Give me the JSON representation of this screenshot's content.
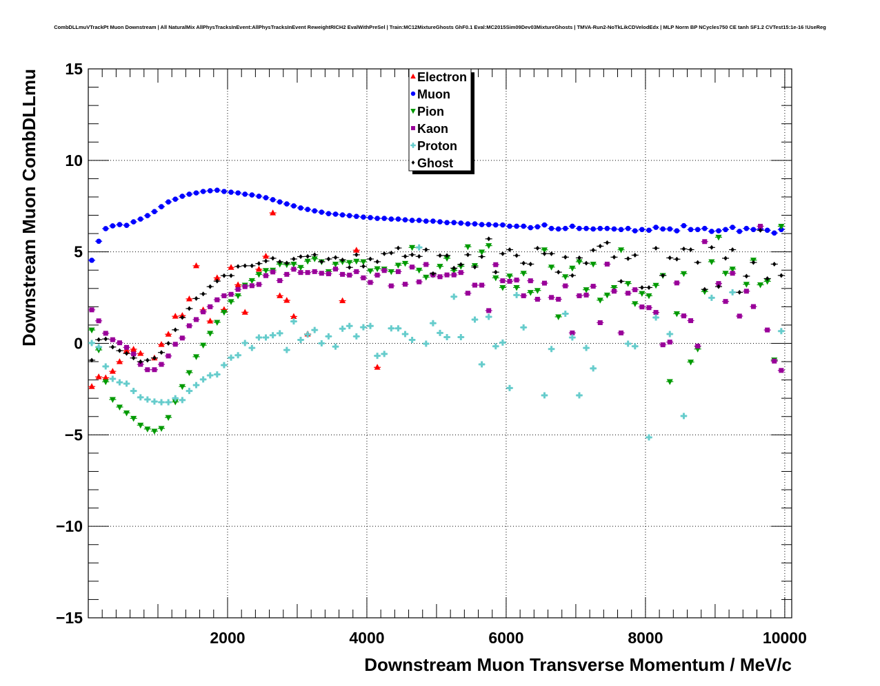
{
  "chart_data": {
    "type": "scatter",
    "title": "CombDLLmuVTrackPt Muon Downstream | All NaturalMix AllPhysTracksInEvent:AllPhysTracksInEvent ReweightRICH2 EvalWithPreSel | Train:MC12MixtureGhosts GhF0.1 Eval:MC2015Sim09Dev03MixtureGhosts | TMVA-Run2-NoTkLikCDVelodEdx | MLP Norm BP NCycles750 CE tanh SF1.2 CVTest15:1e-16 !UseReg",
    "xlabel": "Downstream Muon Transverse Momentum / MeV/c",
    "ylabel": "Downstream Muon CombDLLmu",
    "xlim": [
      0,
      10100
    ],
    "ylim": [
      -15,
      15
    ],
    "xticks": [
      "2000",
      "4000",
      "6000",
      "8000",
      "10000"
    ],
    "yticks": [
      "−15",
      "−10",
      "−5",
      "0",
      "5",
      "10",
      "15"
    ],
    "grid": true,
    "legend_position": "top-center",
    "bin_start": 50,
    "bin_width": 100,
    "series": [
      {
        "name": "Electron",
        "color": "#ff0000",
        "marker": "triangle-up",
        "values": [
          -2.36,
          -1.83,
          -1.88,
          -1.53,
          -1.0,
          -0.4,
          -0.32,
          -0.55,
          null,
          -0.8,
          -0.06,
          0.5,
          1.48,
          1.52,
          2.43,
          4.24,
          1.83,
          1.22,
          3.58,
          1.85,
          4.15,
          3.2,
          1.7,
          null,
          4.05,
          4.76,
          7.13,
          2.6,
          2.35,
          1.47,
          null,
          0.51,
          null,
          null,
          null,
          null,
          2.33,
          null,
          5.09,
          null,
          null,
          -1.31
        ]
      },
      {
        "name": "Muon",
        "color": "#0000ff",
        "marker": "circle",
        "values": [
          4.54,
          5.58,
          6.27,
          6.42,
          6.49,
          6.45,
          6.64,
          6.79,
          6.98,
          7.2,
          7.47,
          7.73,
          7.88,
          8.04,
          8.15,
          8.22,
          8.3,
          8.34,
          8.37,
          8.3,
          8.26,
          8.22,
          8.15,
          8.11,
          8.04,
          7.96,
          7.85,
          7.73,
          7.62,
          7.51,
          7.4,
          7.32,
          7.24,
          7.17,
          7.09,
          7.06,
          7.02,
          6.98,
          6.94,
          6.9,
          6.87,
          6.83,
          6.83,
          6.79,
          6.79,
          6.75,
          6.72,
          6.72,
          6.68,
          6.68,
          6.64,
          6.6,
          6.6,
          6.57,
          6.53,
          6.53,
          6.49,
          6.49,
          6.47,
          6.47,
          6.4,
          6.4,
          6.4,
          6.32,
          6.37,
          6.47,
          6.28,
          6.25,
          6.28,
          6.4,
          6.28,
          6.28,
          6.25,
          6.28,
          6.28,
          6.25,
          6.22,
          6.28,
          6.15,
          6.22,
          6.18,
          6.34,
          6.25,
          6.25,
          6.15,
          6.43,
          6.22,
          6.22,
          6.28,
          6.12,
          6.15,
          6.22,
          6.34,
          6.12,
          6.28,
          6.22,
          6.25,
          6.18,
          6.03,
          6.22
        ]
      },
      {
        "name": "Pion",
        "color": "#009a00",
        "marker": "triangle-down",
        "values": [
          0.73,
          -0.36,
          -2.1,
          -3.07,
          -3.48,
          -3.8,
          -4.1,
          -4.47,
          -4.68,
          -4.8,
          -4.65,
          -4.05,
          -3.2,
          -2.36,
          -1.6,
          -0.73,
          -0.1,
          0.55,
          1.15,
          1.7,
          2.28,
          2.6,
          3.18,
          3.43,
          3.77,
          3.98,
          4.0,
          4.33,
          4.3,
          4.33,
          4.15,
          4.49,
          4.62,
          4.46,
          3.92,
          4.33,
          4.46,
          4.42,
          4.49,
          4.46,
          3.96,
          4.08,
          4.06,
          3.92,
          4.27,
          4.37,
          5.24,
          4.0,
          3.62,
          3.74,
          4.21,
          4.65,
          3.98,
          4.21,
          5.28,
          4.25,
          4.99,
          5.34,
          3.58,
          3.05,
          3.68,
          3.05,
          3.83,
          2.78,
          2.89,
          5.11,
          4.17,
          1.45,
          3.64,
          4.11,
          4.46,
          2.93,
          4.33,
          2.36,
          2.64,
          3.05,
          5.11,
          3.27,
          2.17,
          2.73,
          2.6,
          3.17,
          3.71,
          -2.09,
          1.62,
          3.81,
          -1.02,
          -0.31,
          2.83,
          4.46,
          5.8,
          3.83,
          4.06,
          null,
          3.23,
          4.55,
          3.2,
          3.39,
          -0.91,
          6.4
        ]
      },
      {
        "name": "Kaon",
        "color": "#990099",
        "marker": "square",
        "values": [
          1.83,
          1.23,
          0.55,
          0.2,
          0.03,
          -0.22,
          -0.58,
          -1.15,
          -1.44,
          -1.44,
          -1.15,
          -0.69,
          -0.05,
          0.29,
          0.96,
          1.3,
          1.72,
          2.0,
          2.38,
          2.6,
          2.68,
          2.95,
          3.1,
          3.15,
          3.22,
          3.7,
          3.9,
          3.43,
          3.77,
          4.05,
          3.87,
          3.87,
          3.92,
          3.83,
          3.8,
          4.06,
          3.77,
          3.73,
          3.92,
          3.58,
          3.33,
          3.73,
          3.98,
          3.14,
          3.92,
          3.23,
          4.17,
          3.36,
          4.31,
          3.74,
          3.64,
          3.74,
          3.74,
          3.87,
          2.74,
          3.18,
          3.18,
          1.79,
          4.3,
          3.42,
          3.39,
          3.46,
          2.6,
          3.42,
          2.41,
          3.29,
          2.51,
          2.41,
          3.14,
          0.57,
          2.6,
          2.64,
          3.12,
          1.13,
          4.33,
          2.85,
          0.57,
          2.74,
          2.93,
          1.99,
          1.95,
          1.69,
          -0.08,
          0.07,
          3.3,
          1.5,
          1.24,
          -0.15,
          5.56,
          null,
          3.27,
          2.29,
          3.83,
          1.49,
          2.85,
          2.01,
          6.4,
          0.73,
          -0.97,
          -1.48
        ]
      },
      {
        "name": "Proton",
        "color": "#66cccc",
        "marker": "cross",
        "values": [
          0.02,
          -0.2,
          -1.26,
          -1.94,
          -2.13,
          -2.2,
          -2.6,
          -2.95,
          -3.07,
          -3.18,
          -3.22,
          -3.22,
          -3.0,
          -3.1,
          -2.6,
          -2.28,
          -1.97,
          -1.75,
          -1.7,
          -1.19,
          -0.78,
          -0.65,
          0.02,
          -0.25,
          0.32,
          0.32,
          0.44,
          0.55,
          -0.36,
          1.2,
          0.19,
          0.48,
          0.73,
          0.0,
          0.38,
          -0.18,
          0.8,
          0.95,
          0.38,
          0.88,
          0.95,
          -0.68,
          -0.58,
          0.82,
          0.82,
          0.51,
          0.19,
          5.24,
          -0.02,
          1.1,
          0.57,
          0.34,
          2.55,
          0.34,
          null,
          1.3,
          -1.15,
          1.45,
          -0.16,
          0.04,
          -2.44,
          2.64,
          0.87,
          null,
          null,
          -2.84,
          -0.31,
          null,
          1.62,
          0.32,
          -2.84,
          -0.25,
          -1.37,
          null,
          null,
          null,
          null,
          -0.02,
          -0.16,
          null,
          -5.14,
          1.41,
          null,
          0.51,
          null,
          -3.97,
          null,
          null,
          null,
          2.49,
          null,
          null,
          2.79,
          null,
          null,
          null,
          null,
          null,
          null,
          0.67
        ]
      },
      {
        "name": "Ghost",
        "color": "#000000",
        "marker": "diamond",
        "values": [
          -0.92,
          0.2,
          0.24,
          -0.2,
          -0.4,
          -0.55,
          -0.8,
          -1.0,
          -0.92,
          -0.8,
          -0.5,
          0.0,
          0.74,
          1.41,
          1.9,
          2.45,
          2.7,
          3.1,
          3.4,
          3.7,
          3.7,
          4.2,
          4.24,
          4.24,
          4.36,
          4.5,
          4.65,
          4.46,
          4.39,
          4.61,
          4.74,
          4.75,
          4.84,
          4.46,
          4.61,
          4.69,
          4.56,
          4.15,
          4.84,
          4.21,
          4.61,
          4.46,
          4.9,
          4.94,
          5.21,
          4.75,
          4.84,
          4.75,
          5.12,
          3.81,
          4.8,
          4.8,
          4.11,
          4.31,
          4.84,
          4.17,
          4.74,
          5.71,
          3.89,
          4.9,
          5.12,
          4.8,
          4.38,
          4.33,
          5.2,
          4.9,
          4.9,
          3.89,
          4.71,
          3.71,
          4.67,
          4.38,
          5.09,
          5.31,
          5.5,
          4.71,
          3.39,
          4.63,
          4.82,
          3.05,
          3.05,
          5.2,
          3.71,
          4.67,
          4.6,
          5.16,
          5.12,
          4.42,
          2.95,
          5.24,
          3.1,
          4.65,
          5.12,
          2.79,
          3.67,
          4.42,
          6.18,
          3.54,
          4.33,
          3.71
        ]
      }
    ]
  }
}
